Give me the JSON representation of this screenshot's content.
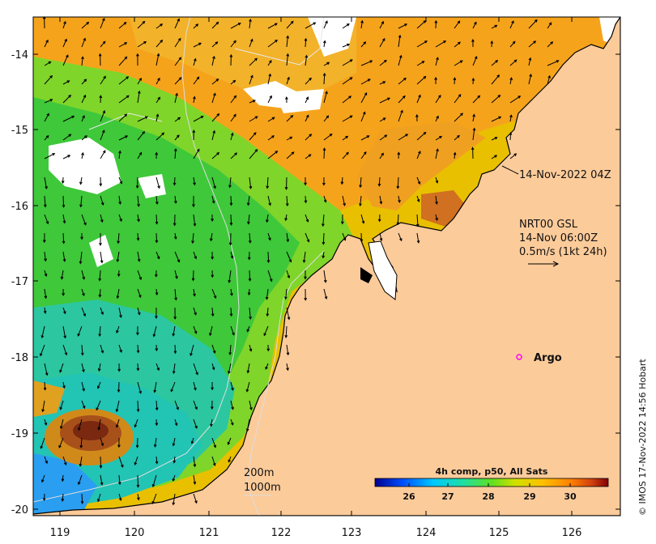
{
  "map": {
    "x_ticks": [
      "119",
      "120",
      "121",
      "122",
      "123",
      "124",
      "125",
      "126"
    ],
    "y_ticks": [
      "-14",
      "-15",
      "-16",
      "-17",
      "-18",
      "-19",
      "-20"
    ],
    "lon_range": [
      118.6,
      126.7
    ],
    "lat_range": [
      -20.1,
      -13.4
    ]
  },
  "annotations": {
    "sst_time": "14-Nov-2022 04Z",
    "current_label_1": "NRT00 GSL",
    "current_label_2": "14-Nov 06:00Z",
    "current_label_3": "0.5m/s (1kt 24h)",
    "argo": "Argo",
    "isobath_1": "200m",
    "isobath_2": "1000m"
  },
  "colorbar": {
    "title": "4h comp, p50, All Sats",
    "ticks": [
      "26",
      "27",
      "28",
      "29",
      "30"
    ],
    "colors": [
      "#00008f",
      "#0040ff",
      "#00c0ff",
      "#40ffbf",
      "#80e020",
      "#e0e000",
      "#ffb000",
      "#ff6000",
      "#c03000",
      "#800000"
    ]
  },
  "credit": "© IMOS 17-Nov-2022 14:56 Hobart",
  "colors": {
    "land": "#fccb9a",
    "cloud": "#ffffff",
    "argo_marker": "#ff00ff"
  }
}
